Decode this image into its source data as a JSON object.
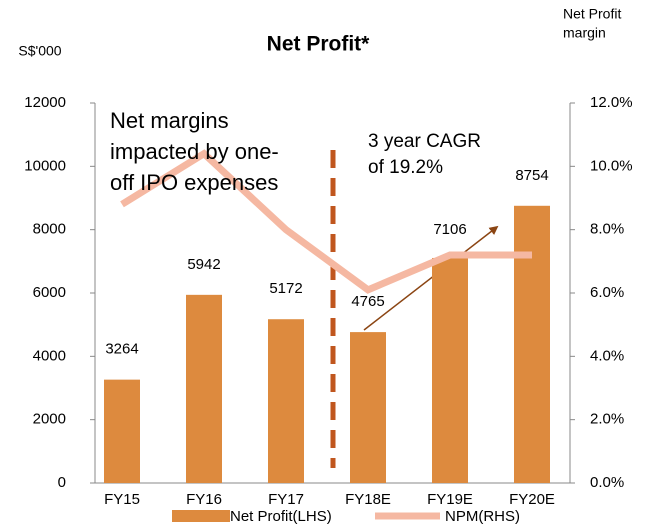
{
  "chart_data": {
    "type": "bar_line",
    "title": "Net Profit*",
    "y_label": "S$'000",
    "y2_label": [
      "Net Profit",
      "margin"
    ],
    "categories": [
      "FY15",
      "FY16",
      "FY17",
      "FY18E",
      "FY19E",
      "FY20E"
    ],
    "series": [
      {
        "name": "Net Profit(LHS)",
        "color": "#dd8a3e",
        "values": [
          3264,
          5942,
          5172,
          4765,
          7106,
          8754
        ]
      },
      {
        "name": "NPM(RHS)",
        "color": "#f5b8a2",
        "axis": "y2",
        "values": [
          8.8,
          10.4,
          8.0,
          6.1,
          7.2,
          7.2
        ]
      }
    ],
    "ylim": [
      0,
      12000
    ],
    "yticks": [
      0,
      2000,
      4000,
      6000,
      8000,
      10000,
      12000
    ],
    "y2lim": [
      0,
      12
    ],
    "y2ticks": [
      {
        "value": 0,
        "label": "0.0%"
      },
      {
        "value": 2,
        "label": "2.0%"
      },
      {
        "value": 4,
        "label": "4.0%"
      },
      {
        "value": 6,
        "label": "6.0%"
      },
      {
        "value": 8,
        "label": "8.0%"
      },
      {
        "value": 10,
        "label": "10.0%"
      },
      {
        "value": 12,
        "label": "12.0%"
      }
    ],
    "annotations": [
      [
        "Net margins",
        "impacted by one-",
        "off IPO expenses"
      ],
      [
        "3 year CAGR",
        "of 19.2%"
      ]
    ],
    "grid": false
  }
}
